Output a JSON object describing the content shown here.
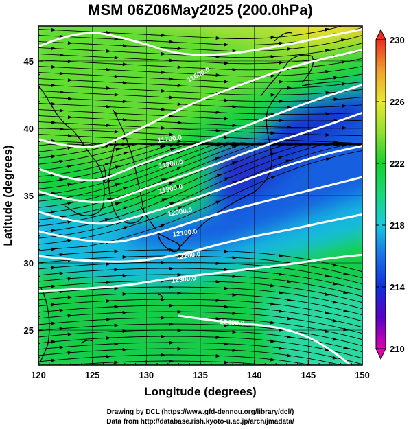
{
  "title": "MSM 06Z06May2025 (200.0hPa)",
  "axes": {
    "xlabel": "Longitude (degrees)",
    "ylabel": "Latitude  (degrees)",
    "x_ticks": [
      "120",
      "125",
      "130",
      "135",
      "140",
      "145",
      "150"
    ],
    "y_ticks": [
      "25",
      "30",
      "35",
      "40",
      "45"
    ],
    "x_range": [
      120,
      150
    ],
    "y_range": [
      22.4,
      47.6
    ]
  },
  "colorbar": {
    "range": [
      210,
      230
    ],
    "ticks": [
      "210",
      "214",
      "218",
      "222",
      "226",
      "230"
    ],
    "colors": [
      "#e000b0",
      "#5a00c8",
      "#1030d8",
      "#1a70e8",
      "#18c8e0",
      "#18d878",
      "#18d030",
      "#90e030",
      "#e8e830",
      "#f0a030",
      "#e83020"
    ]
  },
  "contours": [
    {
      "label": "11600.0",
      "level": 11600
    },
    {
      "label": "11700.0",
      "level": 11700
    },
    {
      "label": "11800.0",
      "level": 11800
    },
    {
      "label": "11900.0",
      "level": 11900
    },
    {
      "label": "12000.0",
      "level": 12000
    },
    {
      "label": "12100.0",
      "level": 12100
    },
    {
      "label": "12200.0",
      "level": 12200
    },
    {
      "label": "12300.0",
      "level": 12300
    },
    {
      "label": "12400.0",
      "level": 12400
    }
  ],
  "credits": {
    "line1": "Drawing by DCL (https://www.gfd-dennou.org/library/dcl/)",
    "line2": "Data from http://database.rish.kyoto-u.ac.jp/arch/jmadata/"
  }
}
